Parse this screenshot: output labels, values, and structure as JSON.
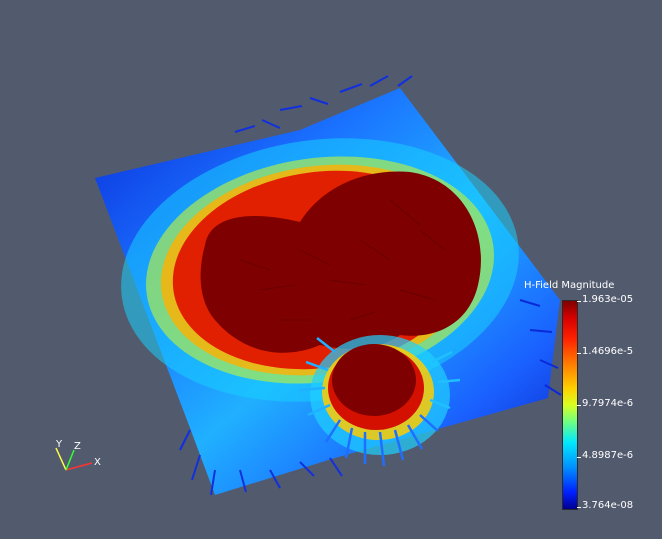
{
  "viewport": {
    "background": "#525a6e"
  },
  "visualization": {
    "plot_type": "3D vector glyph field on tilted plane",
    "colormap": [
      "#00008f",
      "#0020ff",
      "#0090ff",
      "#00e8ff",
      "#70ff80",
      "#d8ff20",
      "#ffd000",
      "#ff7a00",
      "#ff2000",
      "#d40000",
      "#7f0000"
    ]
  },
  "legend": {
    "title": "H-Field Magnitude",
    "max_label": "1.963e-05",
    "tick1_label": "1.4696e-5",
    "tick2_label": "9.7974e-6",
    "tick3_label": "4.8987e-6",
    "min_label": "3.764e-08"
  },
  "orientation_axes": {
    "x_label": "X",
    "y_label": "Y",
    "z_label": "Z",
    "x_color": "#ff3333",
    "y_color": "#ffff44",
    "z_color": "#33ff33"
  }
}
